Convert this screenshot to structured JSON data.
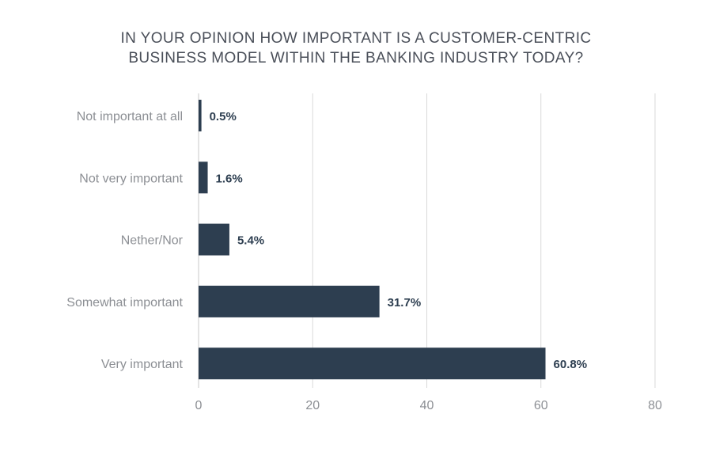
{
  "chart_data": {
    "type": "bar",
    "orientation": "horizontal",
    "title_lines": [
      "IN YOUR OPINION HOW IMPORTANT IS A CUSTOMER-CENTRIC",
      "BUSINESS MODEL WITHIN THE BANKING INDUSTRY TODAY?"
    ],
    "categories": [
      "Not important at all",
      "Not very important",
      "Nether/Nor",
      "Somewhat important",
      "Very important"
    ],
    "values": [
      0.5,
      1.6,
      5.4,
      31.7,
      60.8
    ],
    "value_labels": [
      "0.5%",
      "1.6%",
      "5.4%",
      "31.7%",
      "60.8%"
    ],
    "xlim": [
      0,
      80
    ],
    "xticks": [
      0,
      20,
      40,
      60,
      80
    ],
    "xtick_labels": [
      "0",
      "20",
      "40",
      "60",
      "80"
    ],
    "xlabel": "",
    "ylabel": "",
    "grid": true,
    "bar_color": "#2d3e50"
  }
}
